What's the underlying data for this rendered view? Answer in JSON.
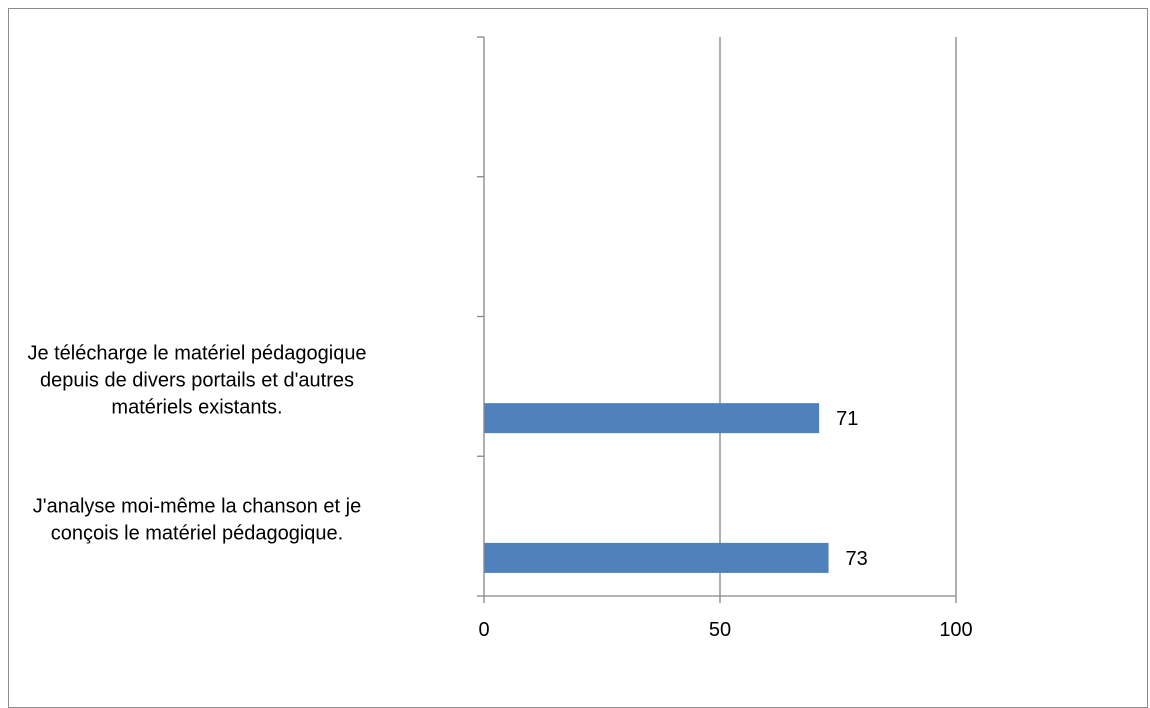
{
  "chart_data": {
    "type": "bar",
    "orientation": "horizontal",
    "title": "",
    "xlabel": "",
    "ylabel": "",
    "categories": [
      "Je télécharge le matériel pédagogique depuis de divers portails et d'autres matériels existants.",
      "J'analyse moi-même la chanson et je conçois le matériel pédagogique."
    ],
    "category_lines": [
      [
        "Je télécharge le matériel pédagogique",
        "depuis de divers portails et d'autres",
        "matériels existants."
      ],
      [
        "J'analyse moi-même la chanson et je",
        "conçois le matériel pédagogique."
      ]
    ],
    "values": [
      71,
      73
    ],
    "xlim": [
      0,
      100
    ],
    "xticks": [
      0,
      50,
      100
    ],
    "empty_category_slots": 2,
    "bar_color": "#4f81bd",
    "gridlines": "vertical",
    "legend": "none"
  }
}
